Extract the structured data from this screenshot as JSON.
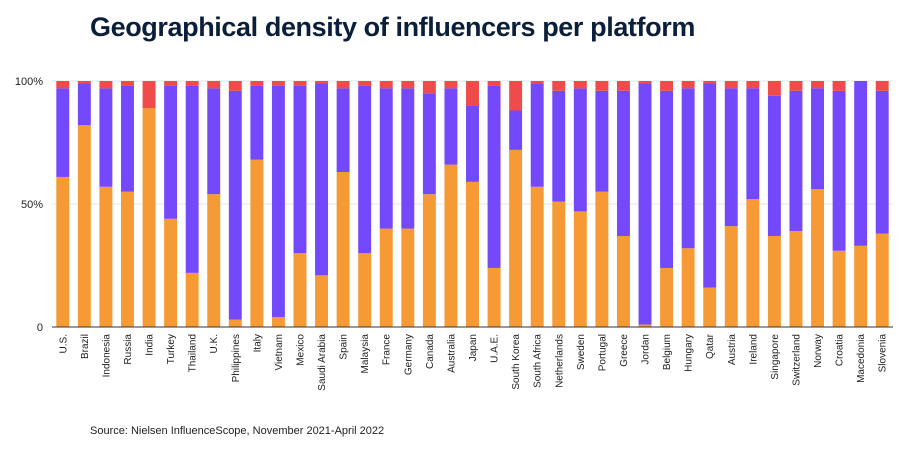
{
  "title": "Geographical density of influencers per platform",
  "source": "Source: Nielsen InfluenceScope, November 2021-April 2022",
  "colors": {
    "bottom": "#f59a34",
    "middle": "#7449fb",
    "top": "#ef4b4b",
    "axis": "#333333",
    "grid": "#e6e6e6"
  },
  "chart_data": {
    "type": "bar",
    "stacked": true,
    "ylim": [
      0,
      100
    ],
    "yticks": [
      0,
      50,
      100
    ],
    "ytick_labels": [
      "0",
      "50%",
      "100%"
    ],
    "categories": [
      "U.S.",
      "Brazil",
      "Indonesia",
      "Russia",
      "India",
      "Turkey",
      "Thailand",
      "U.K.",
      "Philippines",
      "Italy",
      "Vietnam",
      "Mexico",
      "Saudi Arabia",
      "Spain",
      "Malaysia",
      "France",
      "Germany",
      "Canada",
      "Australia",
      "Japan",
      "U.A.E.",
      "South Korea",
      "South Africa",
      "Netherlands",
      "Sweden",
      "Portugal",
      "Greece",
      "Jordan",
      "Belgium",
      "Hungary",
      "Qatar",
      "Austria",
      "Ireland",
      "Singapore",
      "Switzerland",
      "Norway",
      "Croatia",
      "Macedonia",
      "Slovenia"
    ],
    "series": [
      {
        "values": [
          61,
          82,
          57,
          55,
          89,
          44,
          22,
          54,
          3,
          68,
          4,
          30,
          21,
          63,
          30,
          40,
          40,
          54,
          66,
          59,
          24,
          72,
          57,
          51,
          47,
          55,
          37,
          1,
          24,
          32,
          16,
          41,
          52,
          37,
          39,
          56,
          31,
          33,
          38
        ]
      },
      {
        "values": [
          36,
          17,
          40,
          43,
          0,
          54,
          76,
          43,
          93,
          30,
          94,
          68,
          78,
          34,
          68,
          57,
          57,
          41,
          31,
          31,
          74,
          16,
          42,
          45,
          50,
          41,
          59,
          98,
          72,
          65,
          83,
          56,
          45,
          57,
          57,
          41,
          65,
          67,
          58
        ]
      },
      {
        "values": [
          3,
          1,
          3,
          2,
          11,
          2,
          2,
          3,
          4,
          2,
          2,
          2,
          1,
          3,
          2,
          3,
          3,
          5,
          3,
          10,
          2,
          12,
          1,
          4,
          3,
          4,
          4,
          1,
          4,
          3,
          1,
          3,
          3,
          6,
          4,
          3,
          4,
          0,
          4
        ]
      }
    ]
  }
}
